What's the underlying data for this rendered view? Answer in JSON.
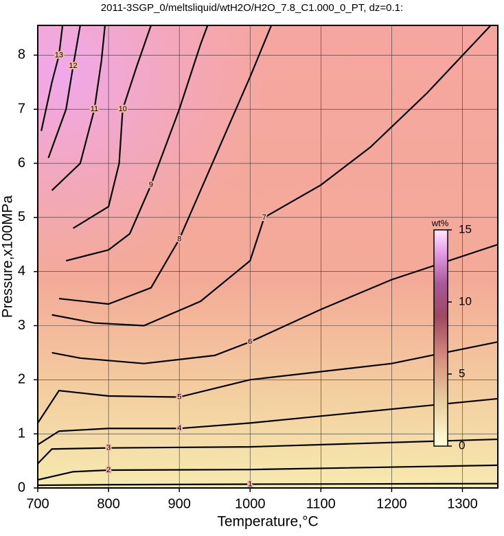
{
  "chart_data": {
    "type": "contour",
    "title": "2011-3SGP_0/meltsliquid/wtH2O/H2O_7.8_C1.000_0_PT, dz=0.1:",
    "x_label": "Temperature,°C",
    "y_label": "Pressure,x100MPa",
    "xlim": [
      700,
      1350
    ],
    "xticks": [
      700,
      800,
      900,
      1000,
      1100,
      1200,
      1300
    ],
    "ylim": [
      0,
      8.55
    ],
    "yticks": [
      0,
      1,
      2,
      3,
      4,
      5,
      6,
      7,
      8
    ],
    "grid": true,
    "colorbar": {
      "label": "wt%",
      "lim": [
        0,
        15
      ],
      "ticks": [
        0,
        5,
        10,
        15
      ]
    },
    "contours": [
      {
        "level": 1,
        "x": [
          700,
          800,
          1000,
          1350
        ],
        "y": [
          0.05,
          0.06,
          0.07,
          0.08
        ]
      },
      {
        "level": 2,
        "x": [
          700,
          750,
          800,
          1000,
          1350
        ],
        "y": [
          0.15,
          0.3,
          0.33,
          0.34,
          0.42
        ]
      },
      {
        "level": 3,
        "x": [
          700,
          720,
          800,
          1000,
          1350
        ],
        "y": [
          0.45,
          0.72,
          0.74,
          0.76,
          0.9
        ]
      },
      {
        "level": 4,
        "x": [
          700,
          730,
          800,
          900,
          1000,
          1350
        ],
        "y": [
          0.8,
          1.05,
          1.1,
          1.1,
          1.2,
          1.65
        ]
      },
      {
        "level": 5,
        "x": [
          700,
          730,
          800,
          900,
          1000,
          1200,
          1350
        ],
        "y": [
          1.2,
          1.8,
          1.7,
          1.68,
          2.0,
          2.3,
          2.7
        ]
      },
      {
        "level": 6,
        "x": [
          720,
          760,
          850,
          950,
          1000,
          1100,
          1200,
          1350
        ],
        "y": [
          2.5,
          2.4,
          2.3,
          2.45,
          2.7,
          3.3,
          3.85,
          4.5
        ]
      },
      {
        "level": 7,
        "x": [
          720,
          780,
          850,
          930,
          1000,
          1020,
          1100,
          1170,
          1250,
          1340
        ],
        "y": [
          3.2,
          3.05,
          3.0,
          3.45,
          4.2,
          5.0,
          5.6,
          6.3,
          7.3,
          8.55
        ]
      },
      {
        "level": 8,
        "x": [
          730,
          800,
          860,
          900,
          950,
          1000,
          1030
        ],
        "y": [
          3.5,
          3.4,
          3.7,
          4.6,
          6.1,
          7.6,
          8.55
        ]
      },
      {
        "level": 9,
        "x": [
          740,
          800,
          830,
          860,
          900,
          930,
          940
        ],
        "y": [
          4.2,
          4.4,
          4.7,
          5.6,
          7.0,
          8.2,
          8.55
        ]
      },
      {
        "level": 10,
        "x": [
          750,
          800,
          815,
          820,
          840,
          860
        ],
        "y": [
          4.8,
          5.2,
          6.0,
          7.0,
          7.8,
          8.55
        ]
      },
      {
        "level": 11,
        "x": [
          720,
          760,
          780,
          790,
          795
        ],
        "y": [
          5.5,
          6.0,
          7.0,
          7.9,
          8.55
        ]
      },
      {
        "level": 12,
        "x": [
          715,
          740,
          750,
          760
        ],
        "y": [
          6.1,
          7.0,
          7.8,
          8.55
        ]
      },
      {
        "level": 13,
        "x": [
          705,
          720,
          730,
          735
        ],
        "y": [
          6.6,
          7.5,
          8.0,
          8.55
        ]
      }
    ]
  }
}
